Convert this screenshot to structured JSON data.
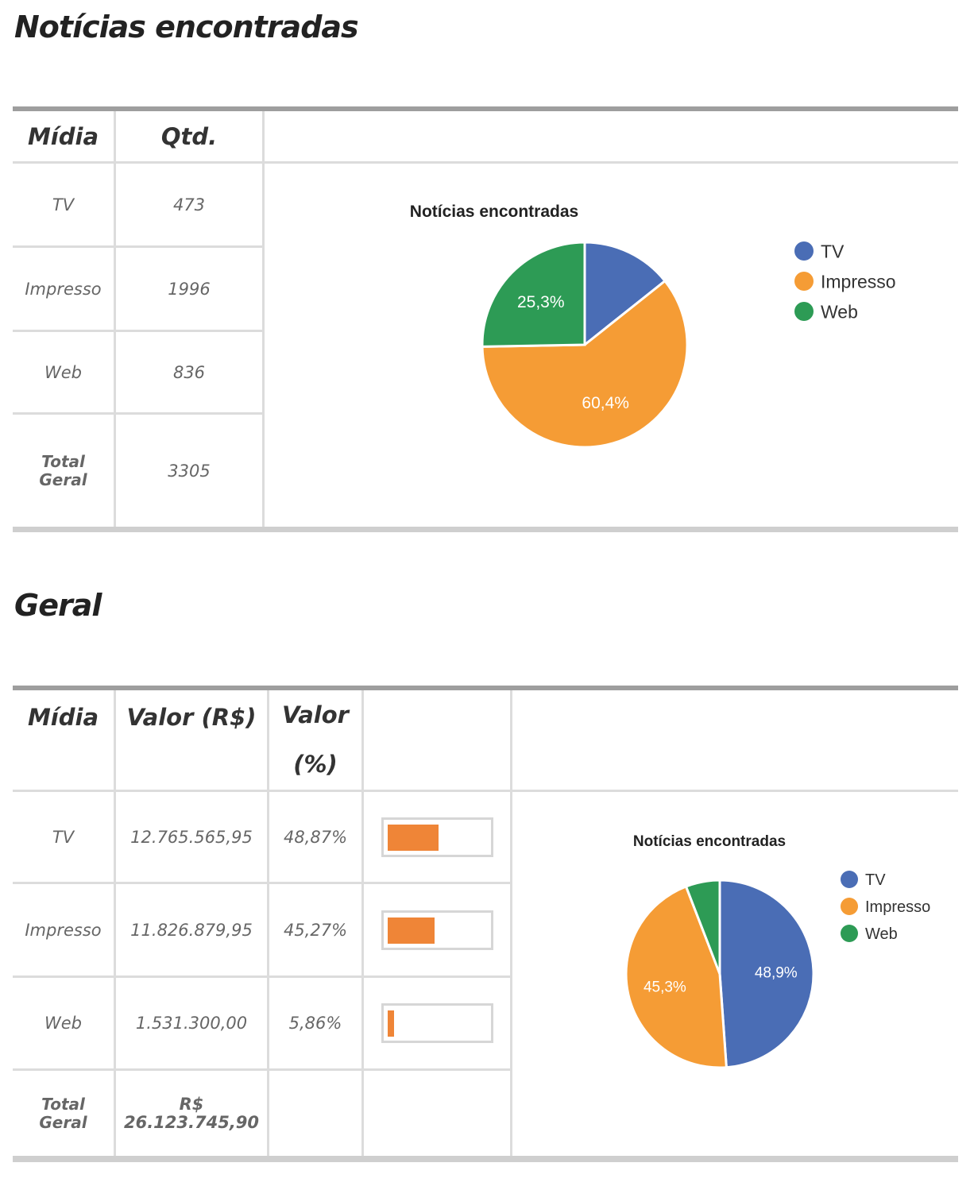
{
  "section1": {
    "title": "Notícias encontradas",
    "headers": {
      "midia": "Mídia",
      "qtd": "Qtd."
    },
    "rows": [
      {
        "midia": "TV",
        "qtd": "473"
      },
      {
        "midia": "Impresso",
        "qtd": "1996"
      },
      {
        "midia": "Web",
        "qtd": "836"
      }
    ],
    "total": {
      "label_line1": "Total",
      "label_line2": "Geral",
      "qtd": "3305"
    }
  },
  "section2": {
    "title": "Geral",
    "headers": {
      "midia": "Mídia",
      "valor": "Valor (R$)",
      "pct_line1": "Valor",
      "pct_line2": "(%)"
    },
    "rows": [
      {
        "midia": "TV",
        "valor": "12.765.565,95",
        "pct": "48,87%",
        "bar": 0.4887
      },
      {
        "midia": "Impresso",
        "valor": "11.826.879,95",
        "pct": "45,27%",
        "bar": 0.4527
      },
      {
        "midia": "Web",
        "valor": "1.531.300,00",
        "pct": "5,86%",
        "bar": 0.0586
      }
    ],
    "total": {
      "label_line1": "Total",
      "label_line2": "Geral",
      "valor_line1": "R$",
      "valor_line2": "26.123.745,90"
    }
  },
  "chart_data": [
    {
      "type": "pie",
      "title": "Notícias encontradas",
      "categories": [
        "TV",
        "Impresso",
        "Web"
      ],
      "values": [
        473,
        1996,
        836
      ],
      "labels": [
        "",
        "60,4%",
        "25,3%"
      ],
      "colors": [
        "#4a6db5",
        "#f59c35",
        "#2d9b55"
      ],
      "legend": "right"
    },
    {
      "type": "pie",
      "title": "Notícias encontradas",
      "categories": [
        "TV",
        "Impresso",
        "Web"
      ],
      "values": [
        12765565.95,
        11826879.95,
        1531300.0
      ],
      "labels": [
        "48,9%",
        "45,3%",
        ""
      ],
      "colors": [
        "#4a6db5",
        "#f59c35",
        "#2d9b55"
      ],
      "legend": "right"
    }
  ]
}
